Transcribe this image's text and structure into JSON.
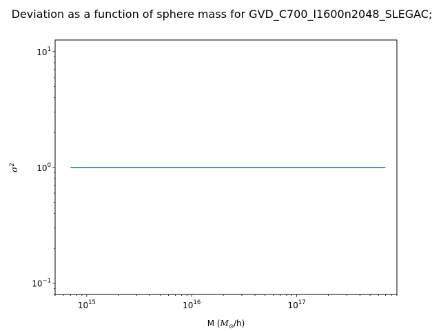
{
  "chart_data": {
    "type": "line",
    "title": "Deviation as a function of sphere mass for GVD_C700_l1600n2048_SLEGAC;",
    "xlabel": "M (M⊙/h)",
    "xlabel_parts": {
      "prefix": "M (",
      "symbol": "M",
      "subscript": "⊙",
      "suffix": "/h)"
    },
    "ylabel": "σ²",
    "ylabel_parts": {
      "symbol": "σ",
      "superscript": "2"
    },
    "x_scale": "log",
    "y_scale": "log",
    "xlim": [
      500000000000000.0,
      9e+17
    ],
    "ylim": [
      0.08,
      12.6
    ],
    "x_ticks": [
      {
        "value": 1000000000000000.0,
        "base": "10",
        "exp": "15"
      },
      {
        "value": 1e+16,
        "base": "10",
        "exp": "16"
      },
      {
        "value": 1e+17,
        "base": "10",
        "exp": "17"
      }
    ],
    "y_ticks": [
      {
        "value": 0.1,
        "base": "10",
        "exp": "−1"
      },
      {
        "value": 1,
        "base": "10",
        "exp": "0"
      },
      {
        "value": 10,
        "base": "10",
        "exp": "1"
      }
    ],
    "grid": false,
    "legend": "none",
    "series": [
      {
        "color": "#1f77b4",
        "points": [
          {
            "x": 700000000000000.0,
            "y": 1.0
          },
          {
            "x": 7e+17,
            "y": 1.0
          }
        ]
      }
    ]
  }
}
